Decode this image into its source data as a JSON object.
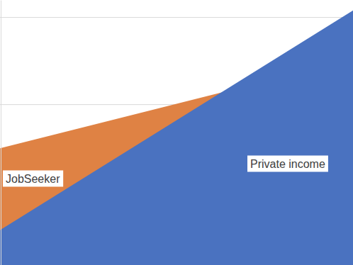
{
  "chart_data": {
    "type": "area",
    "categories": [
      null,
      null
    ],
    "series": [
      {
        "name": "JobSeeker",
        "color": "#df8244",
        "values": [
          150,
          252
        ]
      },
      {
        "name": "Private income",
        "color": "#4a72c0",
        "values": [
          56,
          308
        ]
      }
    ],
    "ylim": [
      16,
      320
    ],
    "yticks": [
      100,
      200,
      300
    ],
    "grid": true,
    "tick_labels": false
  }
}
